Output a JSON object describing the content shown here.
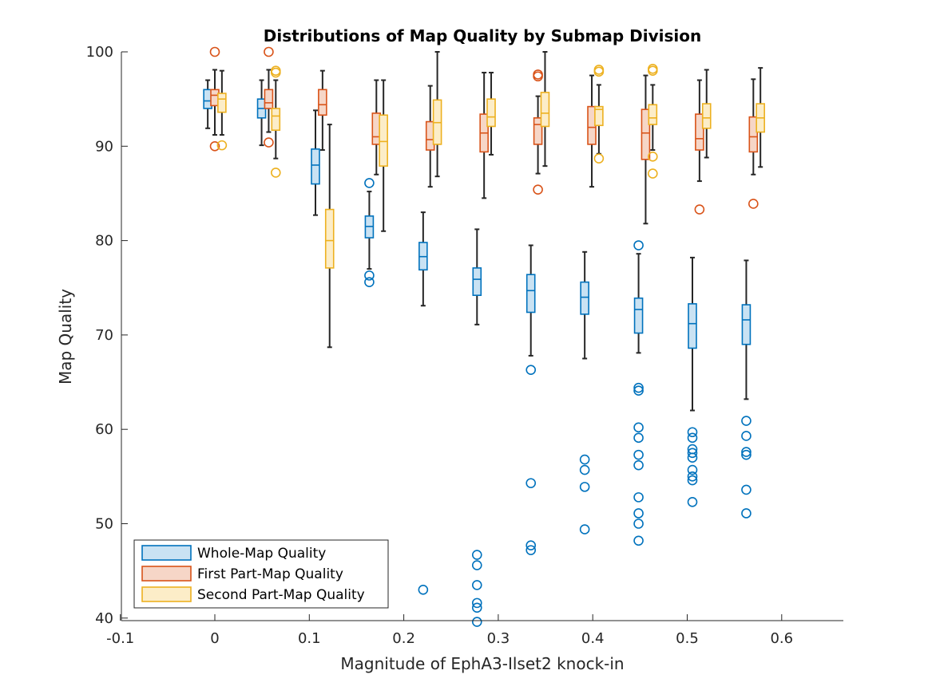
{
  "chart_data": {
    "type": "boxplot",
    "title": "Distributions of Map Quality by Submap Division",
    "xlabel": "Magnitude of EphA3-Ilset2 knock-in",
    "ylabel": "Map Quality",
    "xlim": [
      -0.1,
      0.667
    ],
    "ylim": [
      39.5,
      100
    ],
    "xticks": [
      -0.1,
      0,
      0.1,
      0.2,
      0.3,
      0.4,
      0.5,
      0.6
    ],
    "xtick_labels": [
      "-0.1",
      "0",
      "0.1",
      "0.2",
      "0.3",
      "0.4",
      "0.5",
      "0.6"
    ],
    "yticks": [
      40,
      50,
      60,
      70,
      80,
      90,
      100
    ],
    "ytick_labels": [
      "40",
      "50",
      "60",
      "70",
      "80",
      "90",
      "100"
    ],
    "legend_position": "bottom-left",
    "series": [
      {
        "name": "Whole-Map Quality",
        "color": "#0072BD",
        "fill": "#C9E2F3",
        "boxes": [
          {
            "x": 0.0,
            "whisker_low": 91.9,
            "q1": 94.0,
            "median": 94.8,
            "q3": 96.0,
            "whisker_high": 97.0,
            "outliers": []
          },
          {
            "x": 0.057,
            "whisker_low": 90.1,
            "q1": 93.0,
            "median": 94.0,
            "q3": 95.0,
            "whisker_high": 97.0,
            "outliers": []
          },
          {
            "x": 0.114,
            "whisker_low": 82.7,
            "q1": 86.0,
            "median": 88.0,
            "q3": 89.7,
            "whisker_high": 93.8,
            "outliers": []
          },
          {
            "x": 0.171,
            "whisker_low": 77.0,
            "q1": 80.3,
            "median": 81.5,
            "q3": 82.6,
            "whisker_high": 85.2,
            "outliers": [
              86.1,
              76.3,
              75.6
            ]
          },
          {
            "x": 0.228,
            "whisker_low": 73.1,
            "q1": 76.9,
            "median": 78.3,
            "q3": 79.8,
            "whisker_high": 83.0,
            "outliers": [
              43.0
            ]
          },
          {
            "x": 0.285,
            "whisker_low": 71.1,
            "q1": 74.2,
            "median": 75.9,
            "q3": 77.1,
            "whisker_high": 81.2,
            "outliers": [
              46.7,
              45.6,
              43.5,
              41.6,
              41.1,
              39.6
            ]
          },
          {
            "x": 0.342,
            "whisker_low": 67.8,
            "q1": 72.4,
            "median": 74.7,
            "q3": 76.4,
            "whisker_high": 79.5,
            "outliers": [
              66.3,
              54.3,
              47.7,
              47.2
            ]
          },
          {
            "x": 0.399,
            "whisker_low": 67.5,
            "q1": 72.2,
            "median": 74.0,
            "q3": 75.6,
            "whisker_high": 78.8,
            "outliers": [
              56.8,
              55.7,
              53.9,
              49.4
            ]
          },
          {
            "x": 0.456,
            "whisker_low": 68.1,
            "q1": 70.2,
            "median": 72.7,
            "q3": 73.9,
            "whisker_high": 78.6,
            "outliers": [
              79.5,
              64.4,
              64.1,
              60.2,
              59.1,
              57.3,
              56.2,
              52.8,
              51.1,
              50.0,
              48.2
            ]
          },
          {
            "x": 0.513,
            "whisker_low": 62.0,
            "q1": 68.6,
            "median": 71.2,
            "q3": 73.3,
            "whisker_high": 78.2,
            "outliers": [
              59.7,
              59.1,
              57.9,
              57.5,
              57.0,
              55.7,
              55.0,
              54.6,
              52.3
            ]
          },
          {
            "x": 0.57,
            "whisker_low": 63.2,
            "q1": 69.0,
            "median": 71.6,
            "q3": 73.2,
            "whisker_high": 77.9,
            "outliers": [
              60.9,
              59.3,
              57.6,
              57.3,
              53.6,
              51.1
            ]
          }
        ]
      },
      {
        "name": "First Part-Map Quality",
        "color": "#D95319",
        "fill": "#F6D6C7",
        "boxes": [
          {
            "x": 0.0,
            "whisker_low": 91.2,
            "q1": 94.3,
            "median": 95.4,
            "q3": 96.0,
            "whisker_high": 98.1,
            "outliers": [
              100,
              90.0
            ]
          },
          {
            "x": 0.057,
            "whisker_low": 91.5,
            "q1": 94.0,
            "median": 94.6,
            "q3": 96.0,
            "whisker_high": 98.1,
            "outliers": [
              100,
              90.4
            ]
          },
          {
            "x": 0.114,
            "whisker_low": 89.6,
            "q1": 93.3,
            "median": 94.4,
            "q3": 96.0,
            "whisker_high": 98.0,
            "outliers": []
          },
          {
            "x": 0.171,
            "whisker_low": 87.0,
            "q1": 90.2,
            "median": 91.0,
            "q3": 93.5,
            "whisker_high": 97.0,
            "outliers": []
          },
          {
            "x": 0.228,
            "whisker_low": 85.7,
            "q1": 89.6,
            "median": 90.7,
            "q3": 92.6,
            "whisker_high": 96.4,
            "outliers": []
          },
          {
            "x": 0.285,
            "whisker_low": 84.5,
            "q1": 89.4,
            "median": 91.4,
            "q3": 93.4,
            "whisker_high": 97.8,
            "outliers": []
          },
          {
            "x": 0.342,
            "whisker_low": 87.1,
            "q1": 90.2,
            "median": 92.3,
            "q3": 93.0,
            "whisker_high": 95.3,
            "outliers": [
              97.6,
              97.4,
              85.4
            ]
          },
          {
            "x": 0.399,
            "whisker_low": 85.7,
            "q1": 90.2,
            "median": 92.0,
            "q3": 94.2,
            "whisker_high": 97.5,
            "outliers": []
          },
          {
            "x": 0.456,
            "whisker_low": 81.8,
            "q1": 88.6,
            "median": 91.4,
            "q3": 93.9,
            "whisker_high": 97.5,
            "outliers": []
          },
          {
            "x": 0.513,
            "whisker_low": 86.3,
            "q1": 89.6,
            "median": 90.8,
            "q3": 93.4,
            "whisker_high": 97.0,
            "outliers": [
              83.3
            ]
          },
          {
            "x": 0.57,
            "whisker_low": 87.0,
            "q1": 89.4,
            "median": 91.0,
            "q3": 93.1,
            "whisker_high": 97.1,
            "outliers": [
              83.9
            ]
          }
        ]
      },
      {
        "name": "Second Part-Map Quality",
        "color": "#EDB120",
        "fill": "#FCEDC8",
        "boxes": [
          {
            "x": 0.0,
            "whisker_low": 91.2,
            "q1": 93.6,
            "median": 95.0,
            "q3": 95.6,
            "whisker_high": 98.0,
            "outliers": [
              90.1
            ]
          },
          {
            "x": 0.057,
            "whisker_low": 88.7,
            "q1": 91.7,
            "median": 93.2,
            "q3": 94.0,
            "whisker_high": 97.0,
            "outliers": [
              98.0,
              97.8,
              87.2
            ]
          },
          {
            "x": 0.114,
            "whisker_low": 68.7,
            "q1": 77.1,
            "median": 80.0,
            "q3": 83.3,
            "whisker_high": 92.3,
            "outliers": []
          },
          {
            "x": 0.171,
            "whisker_low": 81.0,
            "q1": 87.9,
            "median": 90.5,
            "q3": 93.3,
            "whisker_high": 97.0,
            "outliers": []
          },
          {
            "x": 0.228,
            "whisker_low": 86.8,
            "q1": 90.2,
            "median": 92.5,
            "q3": 94.9,
            "whisker_high": 100.0,
            "outliers": []
          },
          {
            "x": 0.285,
            "whisker_low": 89.1,
            "q1": 92.1,
            "median": 93.1,
            "q3": 95.0,
            "whisker_high": 97.8,
            "outliers": []
          },
          {
            "x": 0.342,
            "whisker_low": 87.9,
            "q1": 92.1,
            "median": 93.5,
            "q3": 95.7,
            "whisker_high": 100.0,
            "outliers": []
          },
          {
            "x": 0.399,
            "whisker_low": 89.2,
            "q1": 92.2,
            "median": 93.9,
            "q3": 94.2,
            "whisker_high": 96.5,
            "outliers": [
              98.1,
              97.9,
              88.7
            ]
          },
          {
            "x": 0.456,
            "whisker_low": 89.6,
            "q1": 92.3,
            "median": 93.0,
            "q3": 94.4,
            "whisker_high": 96.5,
            "outliers": [
              98.2,
              98.0,
              88.9,
              87.1
            ]
          },
          {
            "x": 0.513,
            "whisker_low": 88.8,
            "q1": 91.9,
            "median": 93.0,
            "q3": 94.5,
            "whisker_high": 98.1,
            "outliers": []
          },
          {
            "x": 0.57,
            "whisker_low": 87.8,
            "q1": 91.5,
            "median": 93.0,
            "q3": 94.5,
            "whisker_high": 98.3,
            "outliers": []
          }
        ]
      }
    ]
  }
}
